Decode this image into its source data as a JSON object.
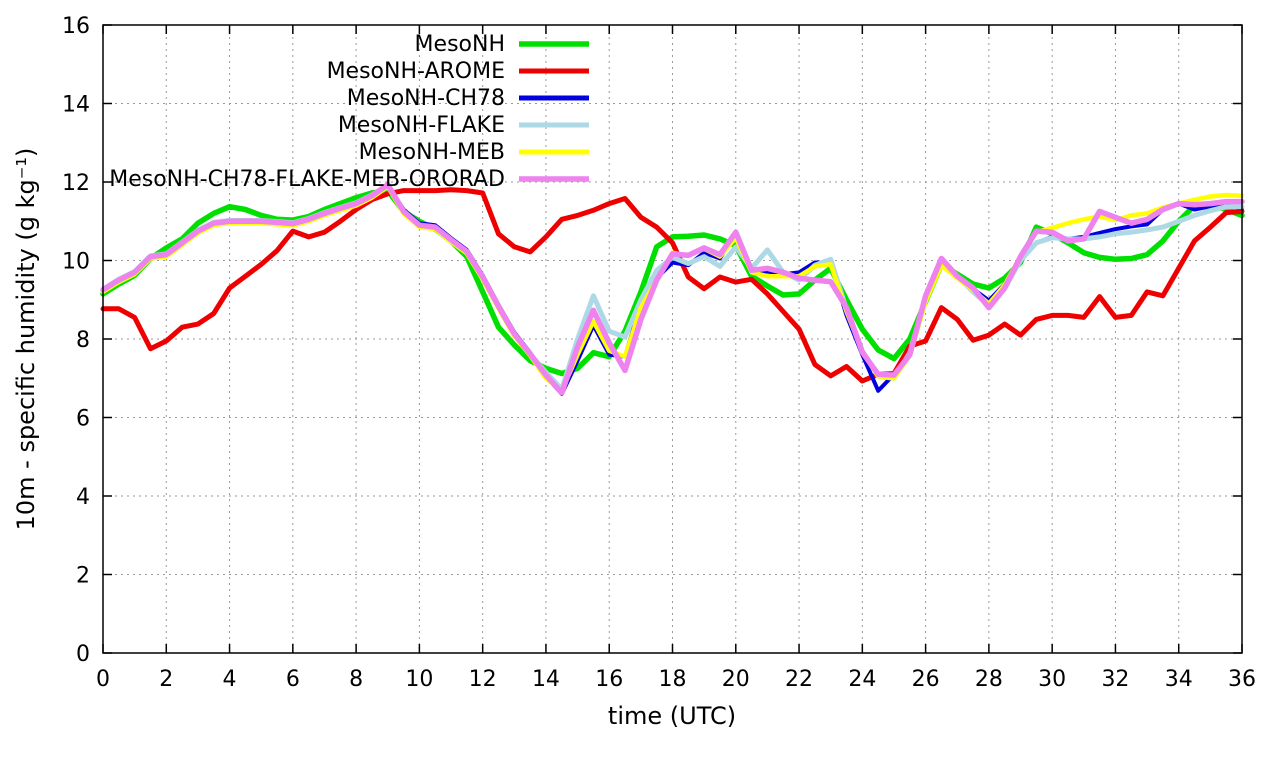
{
  "chart_data": {
    "type": "line",
    "title": "",
    "xlabel": "time (UTC)",
    "ylabel": "10m - specific humidity (g kg⁻¹)",
    "x_range": [
      0,
      36
    ],
    "y_range": [
      0,
      16
    ],
    "x_tick_step": 2,
    "y_tick_step": 2,
    "grid": true,
    "grid_style": "dotted",
    "legend_position": "top-center-inside",
    "x_start": 0,
    "x_step": 0.5,
    "series": [
      {
        "name": "MesoNH",
        "color": "#00e000",
        "width": 5.5,
        "values": [
          9.15,
          9.4,
          9.62,
          10.05,
          10.32,
          10.55,
          10.95,
          11.2,
          11.37,
          11.3,
          11.15,
          11.05,
          11.03,
          11.12,
          11.3,
          11.45,
          11.6,
          11.72,
          11.78,
          11.25,
          11.0,
          10.8,
          10.5,
          10.1,
          9.2,
          8.3,
          7.85,
          7.45,
          7.25,
          7.12,
          7.25,
          7.65,
          7.55,
          8.2,
          9.2,
          10.35,
          10.6,
          10.62,
          10.65,
          10.55,
          10.38,
          9.6,
          9.35,
          9.12,
          9.15,
          9.5,
          9.8,
          9.0,
          8.25,
          7.72,
          7.5,
          8.0,
          8.95,
          9.9,
          9.65,
          9.4,
          9.3,
          9.55,
          9.95,
          10.85,
          10.68,
          10.45,
          10.2,
          10.08,
          10.03,
          10.05,
          10.15,
          10.5,
          11.0,
          11.4,
          11.42,
          11.3,
          11.15
        ]
      },
      {
        "name": "MesoNH-AROME",
        "color": "#ee0000",
        "width": 5,
        "values": [
          8.77,
          8.77,
          8.55,
          7.75,
          7.95,
          8.3,
          8.38,
          8.65,
          9.3,
          9.6,
          9.9,
          10.25,
          10.75,
          10.6,
          10.72,
          11.0,
          11.3,
          11.55,
          11.7,
          11.78,
          11.78,
          11.78,
          11.8,
          11.78,
          11.72,
          10.68,
          10.35,
          10.22,
          10.6,
          11.05,
          11.15,
          11.28,
          11.45,
          11.58,
          11.1,
          10.85,
          10.45,
          9.58,
          9.28,
          9.58,
          9.45,
          9.52,
          9.15,
          8.7,
          8.25,
          7.35,
          7.06,
          7.3,
          6.93,
          7.1,
          7.12,
          7.82,
          7.95,
          8.8,
          8.5,
          7.97,
          8.1,
          8.38,
          8.1,
          8.5,
          8.6,
          8.6,
          8.55,
          9.08,
          8.55,
          8.6,
          9.2,
          9.1,
          9.8,
          10.5,
          10.85,
          11.22,
          11.25
        ]
      },
      {
        "name": "MesoNH-CH78",
        "color": "#0000e0",
        "width": 4,
        "values": [
          9.22,
          9.47,
          9.67,
          10.07,
          10.12,
          10.42,
          10.72,
          10.92,
          10.97,
          10.97,
          10.97,
          10.94,
          10.91,
          11.02,
          11.17,
          11.3,
          11.42,
          11.62,
          11.9,
          11.3,
          10.95,
          10.9,
          10.57,
          10.27,
          9.62,
          8.87,
          8.17,
          7.65,
          7.05,
          6.6,
          7.45,
          8.35,
          7.6,
          7.55,
          8.9,
          9.55,
          9.95,
          9.88,
          10.2,
          10.05,
          10.72,
          9.7,
          9.72,
          9.65,
          9.7,
          9.95,
          9.95,
          8.6,
          7.6,
          6.68,
          7.1,
          7.6,
          9.0,
          9.92,
          9.6,
          9.28,
          8.98,
          9.4,
          10.05,
          10.45,
          10.6,
          10.55,
          10.6,
          10.7,
          10.8,
          10.87,
          10.92,
          11.3,
          11.45,
          11.3,
          11.38,
          11.4,
          11.33
        ]
      },
      {
        "name": "MesoNH-FLAKE",
        "color": "#add8e6",
        "width": 5,
        "values": [
          9.27,
          9.52,
          9.72,
          10.12,
          10.17,
          10.47,
          10.77,
          10.97,
          11.02,
          11.02,
          11.02,
          10.99,
          10.96,
          11.07,
          11.22,
          11.35,
          11.47,
          11.67,
          11.92,
          11.22,
          10.88,
          10.82,
          10.5,
          10.2,
          9.55,
          8.8,
          8.1,
          7.62,
          7.15,
          6.72,
          8.0,
          9.1,
          8.2,
          8.05,
          9.0,
          9.75,
          10.08,
          9.92,
          10.1,
          9.85,
          10.35,
          9.8,
          10.27,
          9.7,
          9.5,
          9.88,
          10.03,
          8.75,
          7.7,
          7.05,
          7.0,
          7.65,
          9.05,
          10.0,
          9.6,
          9.2,
          8.85,
          9.3,
          10.0,
          10.45,
          10.58,
          10.55,
          10.55,
          10.6,
          10.68,
          10.72,
          10.78,
          10.85,
          11.0,
          11.15,
          11.27,
          11.37,
          11.37
        ]
      },
      {
        "name": "MesoNH-MEB",
        "color": "#ffff00",
        "width": 4.5,
        "values": [
          9.2,
          9.45,
          9.65,
          10.05,
          10.1,
          10.4,
          10.7,
          10.9,
          10.95,
          10.95,
          10.95,
          10.92,
          10.89,
          11.0,
          11.15,
          11.28,
          11.4,
          11.6,
          11.88,
          11.2,
          10.85,
          10.8,
          10.48,
          10.18,
          9.52,
          8.78,
          8.08,
          7.58,
          7.0,
          6.68,
          7.6,
          8.45,
          7.7,
          7.55,
          8.8,
          9.5,
          10.2,
          10.12,
          10.3,
          10.1,
          10.58,
          9.7,
          9.6,
          9.6,
          9.6,
          9.85,
          9.9,
          8.7,
          7.68,
          7.05,
          7.0,
          7.58,
          8.95,
          9.88,
          9.55,
          9.25,
          8.9,
          9.38,
          10.1,
          10.72,
          10.83,
          10.95,
          11.05,
          11.12,
          11.03,
          11.15,
          11.2,
          11.35,
          11.45,
          11.55,
          11.63,
          11.67,
          11.65
        ]
      },
      {
        "name": "MesoNH-CH78-FLAKE-MEB-ORORAD",
        "color": "#ee82ee",
        "width": 5.5,
        "values": [
          9.25,
          9.5,
          9.7,
          10.1,
          10.15,
          10.45,
          10.75,
          10.95,
          11.0,
          11.0,
          11.0,
          10.97,
          10.94,
          11.05,
          11.2,
          11.33,
          11.45,
          11.65,
          11.93,
          11.25,
          10.9,
          10.85,
          10.53,
          10.23,
          9.58,
          8.83,
          8.13,
          7.62,
          7.08,
          6.63,
          7.8,
          8.73,
          7.9,
          7.2,
          8.5,
          9.5,
          10.17,
          10.13,
          10.32,
          10.15,
          10.72,
          9.75,
          9.8,
          9.7,
          9.55,
          9.5,
          9.46,
          8.8,
          7.66,
          7.1,
          7.08,
          7.6,
          9.1,
          10.05,
          9.6,
          9.3,
          8.8,
          9.3,
          10.1,
          10.75,
          10.72,
          10.5,
          10.55,
          11.25,
          11.1,
          10.95,
          11.05,
          11.3,
          11.45,
          11.42,
          11.45,
          11.5,
          11.5
        ]
      }
    ]
  }
}
